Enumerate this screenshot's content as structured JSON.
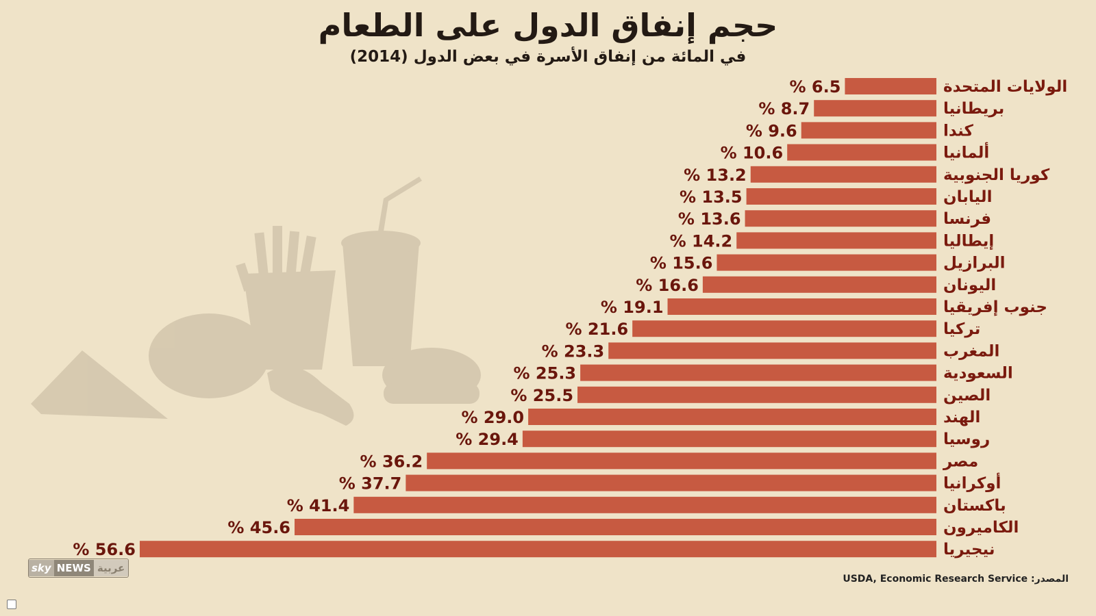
{
  "header": {
    "title": "حجم إنفاق الدول على الطعام",
    "subtitle": "في المائة من إنفاق الأسرة في بعض الدول (2014)"
  },
  "chart_data": {
    "type": "bar",
    "orientation": "horizontal",
    "title": "حجم إنفاق الدول على الطعام",
    "subtitle": "في المائة من إنفاق الأسرة في بعض الدول (2014)",
    "unit": "%",
    "xlim": [
      0,
      56.6
    ],
    "categories": [
      "الولايات المتحدة",
      "بريطانيا",
      "كندا",
      "ألمانيا",
      "كوريا الجنوبية",
      "اليابان",
      "فرنسا",
      "إيطاليا",
      "البرازيل",
      "اليونان",
      "جنوب إفريقيا",
      "تركيا",
      "المغرب",
      "السعودية",
      "الصين",
      "الهند",
      "روسيا",
      "مصر",
      "أوكرانيا",
      "باكستان",
      "الكاميرون",
      "نيجيريا"
    ],
    "values": [
      6.5,
      8.7,
      9.6,
      10.6,
      13.2,
      13.5,
      13.6,
      14.2,
      15.6,
      16.6,
      19.1,
      21.6,
      23.3,
      25.3,
      25.5,
      29.0,
      29.4,
      36.2,
      37.7,
      41.4,
      45.6,
      56.6
    ],
    "value_labels": [
      "6.5",
      "8.7",
      "9.6",
      "10.6",
      "13.2",
      "13.5",
      "13.6",
      "14.2",
      "15.6",
      "16.6",
      "19.1",
      "21.6",
      "23.3",
      "25.3",
      "25.5",
      "29.0",
      "29.4",
      "36.2",
      "37.7",
      "41.4",
      "45.6",
      "56.6"
    ],
    "bar_color": "#c75a41",
    "label_color": "#7a1a0e"
  },
  "logo": {
    "sky": "sky",
    "news": "NEWS",
    "arabic": "عربية"
  },
  "source": {
    "label": "المصدر:",
    "text": "USDA, Economic Research Service"
  }
}
